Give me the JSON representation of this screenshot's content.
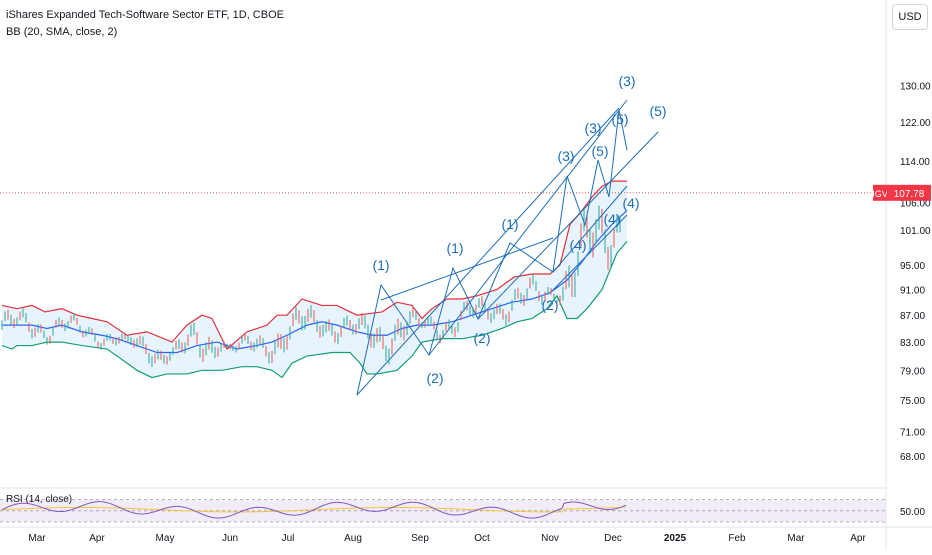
{
  "header": {
    "title": "iShares Expanded Tech-Software Sector ETF, 1D, CBOE",
    "indicator": "BB (20, SMA, close, 2)",
    "rsi_label": "RSI (14, close)",
    "currency_button": "USD"
  },
  "price_tag": {
    "ticker": "IGV",
    "value": "107.78"
  },
  "colors": {
    "upper_band": "#e0303a",
    "basis": "#2962ff",
    "lower_band": "#139e74",
    "band_fill": "#e3f2fd",
    "wave": "#1e6eb8",
    "candles": "#26a69a",
    "rsi_line": "#7e57c2",
    "rsi_ma": "#f5c542",
    "last_price_line": "#f23645"
  },
  "chart_data": [
    {
      "type": "candlestick",
      "symbol": "IGV",
      "interval": "1D",
      "last_price": 107.78,
      "y_ticks": [
        "130.00",
        "122.00",
        "114.00",
        "106.00",
        "101.00",
        "95.00",
        "91.00",
        "87.00",
        "83.00",
        "79.00",
        "75.00",
        "71.00",
        "68.00"
      ],
      "x_ticks": [
        "Mar",
        "Apr",
        "May",
        "Jun",
        "Jul",
        "Aug",
        "Sep",
        "Oct",
        "Nov",
        "Dec",
        "2025",
        "Feb",
        "Mar",
        "Apr"
      ],
      "ylim": [
        66,
        132
      ],
      "x_range": [
        "2024-02-20",
        "2025-04-15"
      ],
      "bollinger": {
        "upper": [
          [
            0,
            88.5
          ],
          [
            15,
            88
          ],
          [
            30,
            88.5
          ],
          [
            43,
            87.5
          ],
          [
            60,
            88
          ],
          [
            75,
            87
          ],
          [
            90,
            86.5
          ],
          [
            105,
            86
          ],
          [
            125,
            84
          ],
          [
            145,
            84.5
          ],
          [
            170,
            83
          ],
          [
            185,
            85.5
          ],
          [
            200,
            87
          ],
          [
            210,
            86.5
          ],
          [
            225,
            82
          ],
          [
            245,
            84.5
          ],
          [
            265,
            85.5
          ],
          [
            275,
            87
          ],
          [
            285,
            87
          ],
          [
            300,
            89.5
          ],
          [
            320,
            88.5
          ],
          [
            335,
            88.5
          ],
          [
            355,
            87
          ],
          [
            380,
            87.5
          ],
          [
            395,
            89
          ],
          [
            410,
            88.5
          ],
          [
            420,
            86.5
          ],
          [
            430,
            88
          ],
          [
            445,
            89.5
          ],
          [
            460,
            89.5
          ],
          [
            475,
            90
          ],
          [
            495,
            91
          ],
          [
            512,
            93
          ],
          [
            530,
            93.5
          ],
          [
            548,
            93.5
          ],
          [
            558,
            95
          ],
          [
            568,
            102
          ],
          [
            578,
            104
          ],
          [
            590,
            107
          ],
          [
            600,
            109
          ],
          [
            610,
            110
          ],
          [
            625,
            110
          ]
        ],
        "basis": [
          [
            0,
            85.5
          ],
          [
            15,
            85.5
          ],
          [
            30,
            85.5
          ],
          [
            45,
            85
          ],
          [
            60,
            85.5
          ],
          [
            80,
            84.5
          ],
          [
            100,
            84
          ],
          [
            115,
            83.5
          ],
          [
            135,
            82.5
          ],
          [
            155,
            81.5
          ],
          [
            175,
            81.5
          ],
          [
            195,
            82.5
          ],
          [
            215,
            83
          ],
          [
            235,
            82
          ],
          [
            255,
            82.5
          ],
          [
            270,
            83
          ],
          [
            285,
            84
          ],
          [
            305,
            85.5
          ],
          [
            320,
            86
          ],
          [
            335,
            85.5
          ],
          [
            355,
            84.5
          ],
          [
            370,
            84
          ],
          [
            385,
            84
          ],
          [
            400,
            85
          ],
          [
            415,
            85.5
          ],
          [
            430,
            85.5
          ],
          [
            450,
            86
          ],
          [
            470,
            87
          ],
          [
            490,
            88
          ],
          [
            510,
            89
          ],
          [
            530,
            89.5
          ],
          [
            548,
            90.5
          ],
          [
            565,
            92.5
          ],
          [
            580,
            95.5
          ],
          [
            595,
            99
          ],
          [
            610,
            102
          ],
          [
            625,
            104.5
          ]
        ],
        "lower": [
          [
            0,
            82.5
          ],
          [
            10,
            82
          ],
          [
            15,
            82.5
          ],
          [
            30,
            82.5
          ],
          [
            45,
            83
          ],
          [
            60,
            83
          ],
          [
            80,
            82.5
          ],
          [
            105,
            82
          ],
          [
            120,
            80.5
          ],
          [
            135,
            79
          ],
          [
            150,
            78
          ],
          [
            165,
            78.5
          ],
          [
            185,
            78.5
          ],
          [
            200,
            79
          ],
          [
            220,
            79
          ],
          [
            240,
            79.5
          ],
          [
            255,
            79.5
          ],
          [
            270,
            79
          ],
          [
            280,
            78
          ],
          [
            290,
            80
          ],
          [
            305,
            81
          ],
          [
            330,
            81.5
          ],
          [
            348,
            81.5
          ],
          [
            358,
            80
          ],
          [
            365,
            78.5
          ],
          [
            375,
            78.5
          ],
          [
            395,
            79
          ],
          [
            410,
            81
          ],
          [
            420,
            83
          ],
          [
            440,
            83.5
          ],
          [
            460,
            83.5
          ],
          [
            480,
            84
          ],
          [
            500,
            85
          ],
          [
            515,
            86
          ],
          [
            530,
            86.5
          ],
          [
            545,
            88
          ],
          [
            555,
            90
          ],
          [
            565,
            86.5
          ],
          [
            575,
            86.5
          ],
          [
            585,
            88
          ],
          [
            600,
            91
          ],
          [
            615,
            97
          ],
          [
            625,
            99
          ]
        ]
      },
      "elliott_labels": [
        "(1)",
        "(2)",
        "(1)",
        "(2)",
        "(1)",
        "(2)",
        "(3)",
        "(4)",
        "(5)",
        "(3)",
        "(4)",
        "(5)",
        "(3)",
        "(4)",
        "(5)"
      ]
    },
    {
      "type": "line",
      "name": "RSI (14, close)",
      "y_ticks": [
        "50.00"
      ],
      "ylim": [
        30,
        80
      ],
      "levels": [
        70,
        50,
        30
      ]
    }
  ]
}
